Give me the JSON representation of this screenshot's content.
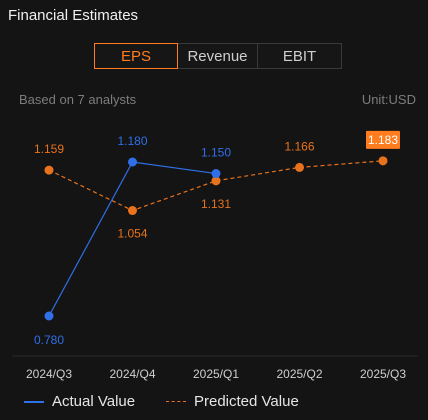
{
  "header": {
    "title": "Financial Estimates"
  },
  "tabs": [
    {
      "label": "EPS",
      "active": true
    },
    {
      "label": "Revenue",
      "active": false
    },
    {
      "label": "EBIT",
      "active": false
    }
  ],
  "subheader": {
    "analysts": "Based on 7 analysts",
    "unit": "Unit:USD"
  },
  "colors": {
    "actual": "#2f6fe8",
    "predicted": "#e8731c",
    "accent": "#ff7d1f"
  },
  "chart_data": {
    "type": "line",
    "categories": [
      "2024/Q3",
      "2024/Q4",
      "2025/Q1",
      "2025/Q2",
      "2025/Q3"
    ],
    "series": [
      {
        "name": "Actual Value",
        "values": [
          0.78,
          1.18,
          1.15,
          null,
          null
        ],
        "labels": [
          "0.780",
          "1.180",
          "1.150",
          "",
          ""
        ]
      },
      {
        "name": "Predicted Value",
        "values": [
          1.159,
          1.054,
          1.131,
          1.166,
          1.183
        ],
        "labels": [
          "1.159",
          "1.054",
          "1.131",
          "1.166",
          "1.183"
        ]
      }
    ],
    "highlighted_point": {
      "series": "Predicted Value",
      "category": "2025/Q3"
    }
  },
  "legend": {
    "actual": "Actual Value",
    "predicted": "Predicted Value"
  }
}
